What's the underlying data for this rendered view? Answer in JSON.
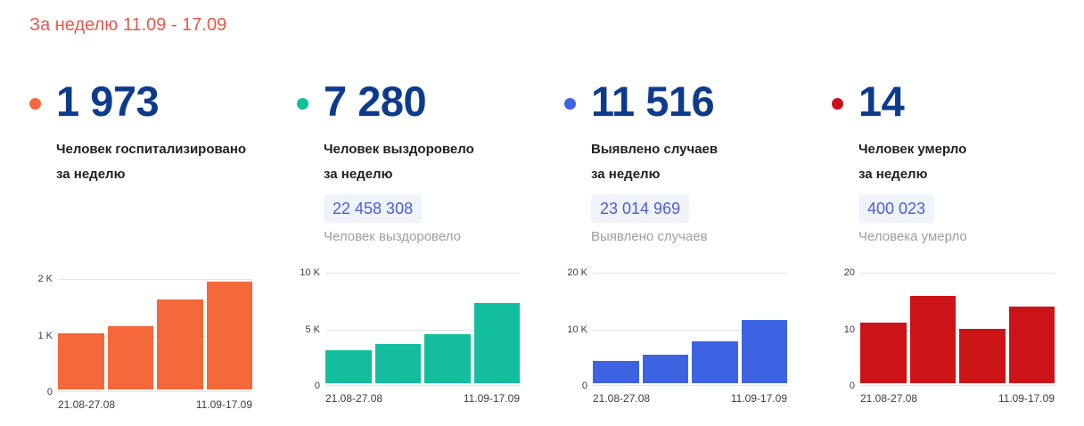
{
  "header": {
    "title": "За неделю 11.09 - 17.09",
    "color": "#e25a4c"
  },
  "theme": {
    "value_color": "#0d3b8c",
    "badge_bg": "#f0f2fc",
    "badge_text": "#4a60d2",
    "caption_gray": "#9aa0a6",
    "axis_text": "#3d3d3d",
    "gridline": "#e4e4e4"
  },
  "cards": [
    {
      "value": "1 973",
      "label_lines": [
        "Человек госпитализировано",
        "за неделю"
      ],
      "color": "#f4683c",
      "total": null,
      "total_caption": null
    },
    {
      "value": "7 280",
      "label_lines": [
        "Человек выздоровело",
        "за неделю"
      ],
      "color": "#12be9d",
      "total": "22 458 308",
      "total_caption": "Человек выздоровело"
    },
    {
      "value": "11 516",
      "label_lines": [
        "Выявлено случаев",
        "за неделю"
      ],
      "color": "#3e63e2",
      "total": "23 014 969",
      "total_caption": "Выявлено случаев"
    },
    {
      "value": "14",
      "label_lines": [
        "Человек умерло",
        "за неделю"
      ],
      "color": "#c8121e",
      "total": "400 023",
      "total_caption": "Человека умерло"
    }
  ],
  "chart_data": [
    {
      "type": "bar",
      "title": "Человек госпитализировано за неделю",
      "color": "#f4683c",
      "categories": [
        "21.08-27.08",
        "",
        "",
        "11.09-17.09"
      ],
      "values": [
        1030,
        1160,
        1640,
        1973
      ],
      "ylim": [
        0,
        2000
      ],
      "ytick_labels": [
        "2 K",
        "1 K",
        "0"
      ],
      "grid": true,
      "legend": false
    },
    {
      "type": "bar",
      "title": "Человек выздоровело за неделю",
      "color": "#12be9d",
      "categories": [
        "21.08-27.08",
        "",
        "",
        "11.09-17.09"
      ],
      "values": [
        3050,
        3600,
        4450,
        7280
      ],
      "ylim": [
        0,
        10000
      ],
      "ytick_labels": [
        "10 K",
        "5 K",
        "0"
      ],
      "grid": true,
      "legend": false
    },
    {
      "type": "bar",
      "title": "Выявлено случаев за неделю",
      "color": "#3e63e2",
      "categories": [
        "21.08-27.08",
        "",
        "",
        "11.09-17.09"
      ],
      "values": [
        4000,
        5150,
        7600,
        11516
      ],
      "ylim": [
        0,
        20000
      ],
      "ytick_labels": [
        "20 K",
        "10 K",
        "0"
      ],
      "grid": true,
      "legend": false
    },
    {
      "type": "bar",
      "title": "Человек умерло за неделю",
      "color": "#cc1318",
      "categories": [
        "21.08-27.08",
        "",
        "",
        "11.09-17.09"
      ],
      "values": [
        11,
        16,
        10,
        14
      ],
      "ylim": [
        0,
        20
      ],
      "ytick_labels": [
        "20",
        "10",
        "0"
      ],
      "grid": true,
      "legend": false
    }
  ]
}
